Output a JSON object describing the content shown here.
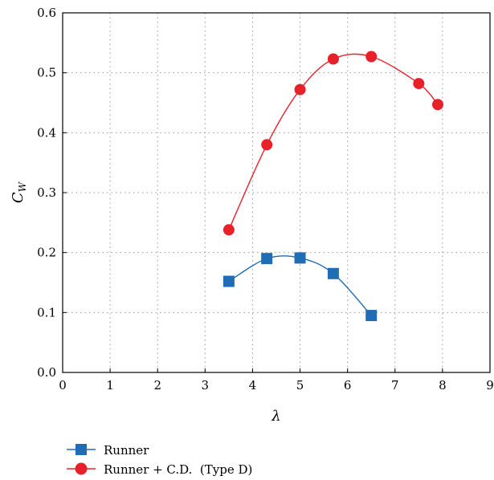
{
  "chart_data": {
    "type": "line",
    "xlabel": "λ",
    "ylabel_main": "C",
    "ylabel_sub": "W",
    "xlim": [
      0,
      9
    ],
    "ylim": [
      0,
      0.6
    ],
    "x_ticks": [
      "0",
      "1",
      "2",
      "3",
      "4",
      "5",
      "6",
      "7",
      "8",
      "9"
    ],
    "y_ticks": [
      "0.0",
      "0.1",
      "0.2",
      "0.3",
      "0.4",
      "0.5",
      "0.6"
    ],
    "grid": true,
    "legend_position": "bottom",
    "series": [
      {
        "name": "Runner",
        "marker": "square",
        "color": "#1f6db4",
        "x": [
          3.5,
          4.3,
          5.0,
          5.7,
          6.5
        ],
        "y": [
          0.152,
          0.19,
          0.191,
          0.165,
          0.095
        ]
      },
      {
        "name": "Runner + C.D.  (Type D)",
        "marker": "circle",
        "color": "#e8202a",
        "x": [
          3.5,
          4.3,
          5.0,
          5.7,
          6.5,
          7.5,
          7.9
        ],
        "y": [
          0.238,
          0.38,
          0.472,
          0.523,
          0.527,
          0.482,
          0.447
        ]
      }
    ]
  }
}
